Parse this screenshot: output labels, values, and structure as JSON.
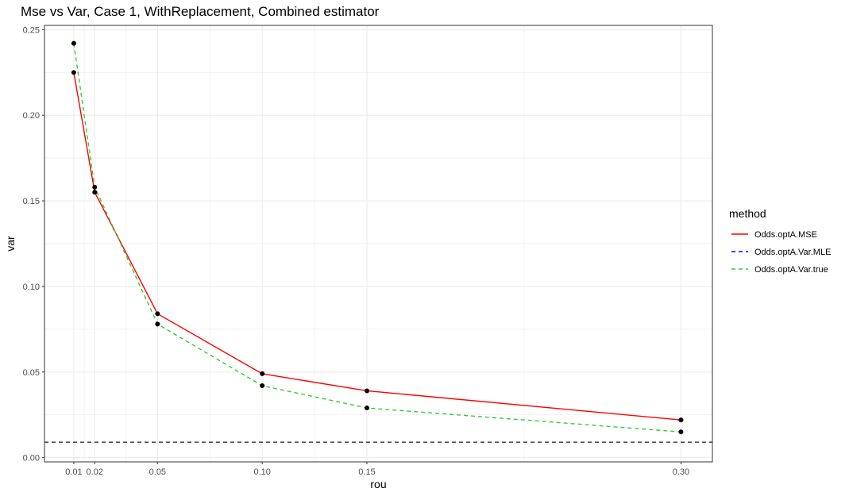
{
  "chart_data": {
    "type": "line",
    "title": "Mse vs Var, Case 1, WithReplacement, Combined estimator",
    "xlabel": "rou",
    "ylabel": "var",
    "x": [
      0.01,
      0.02,
      0.05,
      0.1,
      0.15,
      0.3
    ],
    "x_tick_labels": [
      "0.01",
      "0.02",
      "0.05",
      "0.10",
      "0.15",
      "0.30"
    ],
    "y_ticks": [
      0.0,
      0.05,
      0.1,
      0.15,
      0.2,
      0.25
    ],
    "y_tick_labels": [
      "0.00",
      "0.05",
      "0.10",
      "0.15",
      "0.20",
      "0.25"
    ],
    "xlim": [
      -0.004,
      0.315
    ],
    "ylim": [
      -0.0025,
      0.2525
    ],
    "grid": true,
    "legend": {
      "title": "method",
      "position": "right"
    },
    "series": [
      {
        "name": "Odds.optA.MSE",
        "color": "#ff0000",
        "linetype": "solid",
        "values": [
          0.225,
          0.155,
          0.084,
          0.049,
          0.039,
          0.022
        ]
      },
      {
        "name": "Odds.optA.Var.MLE",
        "color": "#0000ff",
        "linetype": "dashed",
        "values": [
          null,
          null,
          null,
          null,
          null,
          null
        ]
      },
      {
        "name": "Odds.optA.Var.true",
        "color": "#33cc33",
        "linetype": "dashed",
        "values": [
          0.242,
          0.158,
          0.078,
          0.042,
          0.029,
          0.015
        ]
      }
    ],
    "reference_line": {
      "type": "horizontal",
      "y": 0.009,
      "color": "#333333",
      "linetype": "dashed"
    }
  }
}
